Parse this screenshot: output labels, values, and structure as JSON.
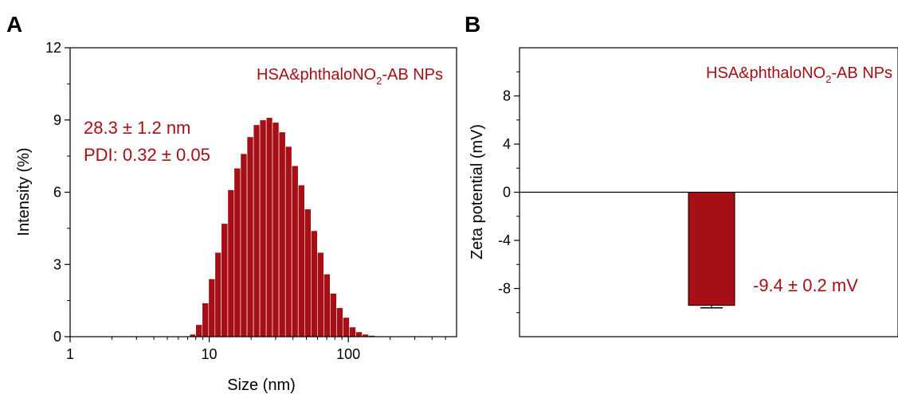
{
  "panels": [
    {
      "label": "A"
    },
    {
      "label": "B"
    }
  ],
  "chart_data": [
    {
      "type": "bar",
      "panel": "A",
      "xlabel": "Size (nm)",
      "ylabel": "Intensity (%)",
      "xscale": "log",
      "xlim": [
        1,
        600
      ],
      "ylim": [
        0,
        12
      ],
      "xticks": [
        "1",
        "10",
        "100"
      ],
      "yticks": [
        "0",
        "3",
        "6",
        "9",
        "12"
      ],
      "bar_color": "#a50f15",
      "bar_edge_color": "#ffffff",
      "text_color": "#a50f15",
      "legend_text": {
        "pre": "HSA&phthaloNO",
        "sub": "2",
        "post": "-AB NPs"
      },
      "annotations": [
        "28.3 ± 1.2 nm",
        "PDI: 0.32 ± 0.05"
      ],
      "bins": [
        {
          "from": 7.25,
          "to": 8.0,
          "value": 0.1
        },
        {
          "from": 8.0,
          "to": 8.9,
          "value": 0.5
        },
        {
          "from": 8.9,
          "to": 9.9,
          "value": 1.4
        },
        {
          "from": 9.9,
          "to": 11.0,
          "value": 2.4
        },
        {
          "from": 11.0,
          "to": 12.2,
          "value": 3.5
        },
        {
          "from": 12.2,
          "to": 13.6,
          "value": 4.7
        },
        {
          "from": 13.6,
          "to": 15.1,
          "value": 6.1
        },
        {
          "from": 15.1,
          "to": 16.8,
          "value": 7.0
        },
        {
          "from": 16.8,
          "to": 18.7,
          "value": 7.6
        },
        {
          "from": 18.7,
          "to": 20.8,
          "value": 8.3
        },
        {
          "from": 20.8,
          "to": 23.1,
          "value": 8.8
        },
        {
          "from": 23.1,
          "to": 25.7,
          "value": 9.0
        },
        {
          "from": 25.7,
          "to": 28.5,
          "value": 9.1
        },
        {
          "from": 28.5,
          "to": 31.7,
          "value": 8.9
        },
        {
          "from": 31.7,
          "to": 35.3,
          "value": 8.5
        },
        {
          "from": 35.3,
          "to": 39.2,
          "value": 7.9
        },
        {
          "from": 39.2,
          "to": 43.6,
          "value": 7.1
        },
        {
          "from": 43.6,
          "to": 48.5,
          "value": 6.3
        },
        {
          "from": 48.5,
          "to": 53.9,
          "value": 5.3
        },
        {
          "from": 53.9,
          "to": 59.9,
          "value": 4.4
        },
        {
          "from": 59.9,
          "to": 66.6,
          "value": 3.5
        },
        {
          "from": 66.6,
          "to": 74.0,
          "value": 2.6
        },
        {
          "from": 74.0,
          "to": 82.3,
          "value": 1.8
        },
        {
          "from": 82.3,
          "to": 91.5,
          "value": 1.2
        },
        {
          "from": 91.5,
          "to": 101.7,
          "value": 0.8
        },
        {
          "from": 101.7,
          "to": 113.1,
          "value": 0.4
        },
        {
          "from": 113.1,
          "to": 125.7,
          "value": 0.2
        },
        {
          "from": 125.7,
          "to": 139.7,
          "value": 0.1
        },
        {
          "from": 139.7,
          "to": 155.3,
          "value": 0.05
        }
      ]
    },
    {
      "type": "bar",
      "panel": "B",
      "xlabel": "",
      "ylabel": "Zeta potential (mV)",
      "ylim": [
        -12,
        12
      ],
      "yticks": [
        "-8",
        "-4",
        "0",
        "4",
        "8"
      ],
      "categories": [
        ""
      ],
      "values": [
        -9.4
      ],
      "error": [
        0.2
      ],
      "bar_color": "#a50f15",
      "text_color": "#a50f15",
      "legend_text": {
        "pre": "HSA&phthaloNO",
        "sub": "2",
        "post": "-AB NPs"
      },
      "annotations": [
        "-9.4 ± 0.2 mV"
      ]
    }
  ]
}
